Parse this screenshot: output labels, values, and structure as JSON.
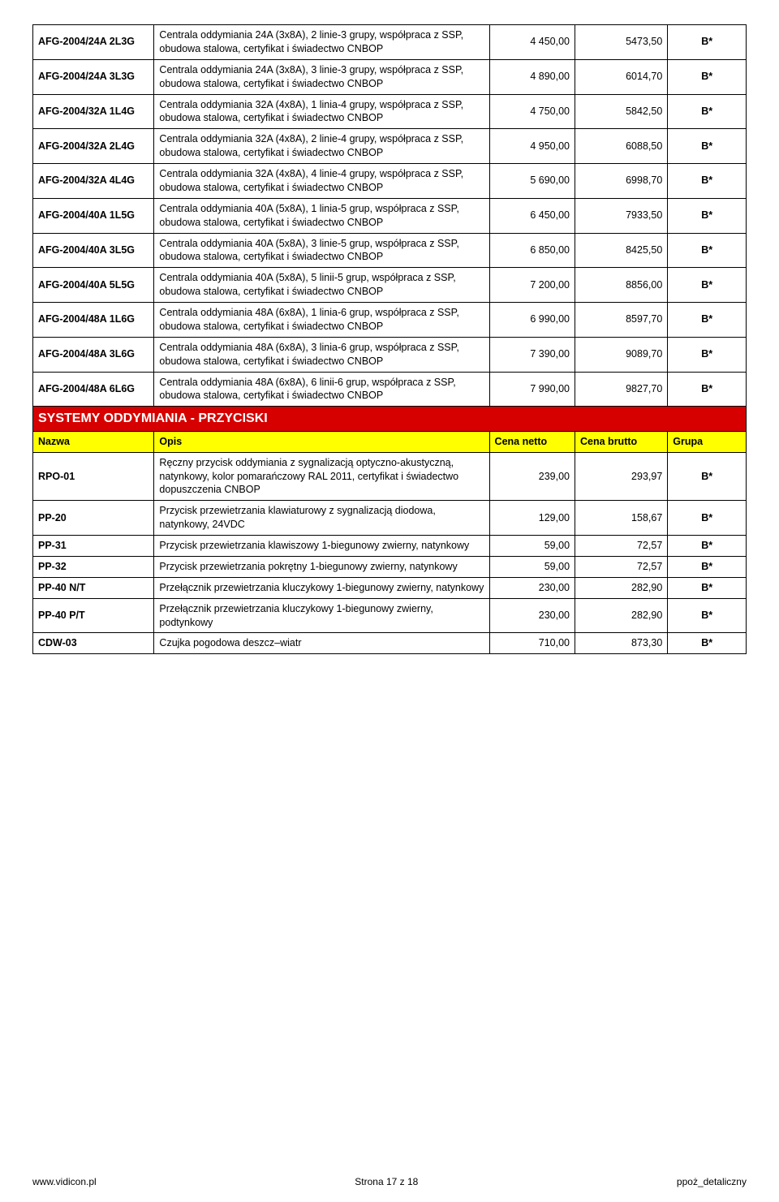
{
  "rows_top": [
    {
      "name": "AFG-2004/24A 2L3G",
      "desc": "Centrala oddymiania 24A (3x8A), 2 linie-3 grupy, współpraca z SSP, obudowa stalowa, certyfikat i świadectwo CNBOP",
      "net": "4 450,00",
      "gross": "5473,50",
      "grp": "B*"
    },
    {
      "name": "AFG-2004/24A 3L3G",
      "desc": "Centrala oddymiania 24A (3x8A), 3 linie-3 grupy, współpraca z SSP, obudowa stalowa, certyfikat i świadectwo CNBOP",
      "net": "4 890,00",
      "gross": "6014,70",
      "grp": "B*"
    },
    {
      "name": "AFG-2004/32A 1L4G",
      "desc": "Centrala oddymiania 32A (4x8A), 1 linia-4 grupy, współpraca z SSP, obudowa stalowa, certyfikat i świadectwo CNBOP",
      "net": "4 750,00",
      "gross": "5842,50",
      "grp": "B*"
    },
    {
      "name": "AFG-2004/32A 2L4G",
      "desc": "Centrala oddymiania 32A (4x8A), 2 linie-4 grupy, współpraca z SSP, obudowa stalowa, certyfikat i świadectwo CNBOP",
      "net": "4 950,00",
      "gross": "6088,50",
      "grp": "B*"
    },
    {
      "name": "AFG-2004/32A 4L4G",
      "desc": "Centrala oddymiania 32A (4x8A), 4 linie-4 grupy, współpraca z SSP, obudowa stalowa, certyfikat i świadectwo CNBOP",
      "net": "5 690,00",
      "gross": "6998,70",
      "grp": "B*"
    },
    {
      "name": "AFG-2004/40A 1L5G",
      "desc": "Centrala  oddymiania 40A (5x8A), 1 linia-5 grup, współpraca z  SSP, obudowa stalowa, certyfikat i świadectwo CNBOP",
      "net": "6 450,00",
      "gross": "7933,50",
      "grp": "B*"
    },
    {
      "name": "AFG-2004/40A 3L5G",
      "desc": "Centrala  oddymiania 40A (5x8A), 3 linie-5 grup, współpraca z  SSP, obudowa stalowa, certyfikat  i świadectwo CNBOP",
      "net": "6 850,00",
      "gross": "8425,50",
      "grp": "B*"
    },
    {
      "name": "AFG-2004/40A 5L5G",
      "desc": "Centrala  oddymiania 40A (5x8A), 5  linii-5  grup, współpraca  z  SSP,  obudowa  stalowa,  certyfikat  i świadectwo CNBOP",
      "net": "7 200,00",
      "gross": "8856,00",
      "grp": "B*"
    },
    {
      "name": "AFG-2004/48A 1L6G",
      "desc": "Centrala  oddymiania 48A (6x8A), 1 linia-6 grup, współpraca z  SSP, obudowa stalowa, certyfikat i świadectwo CNBOP",
      "net": "6 990,00",
      "gross": "8597,70",
      "grp": "B*"
    },
    {
      "name": "AFG-2004/48A 3L6G",
      "desc": "Centrala  oddymiania 48A (6x8A), 3 linia-6 grup, współpraca z  SSP, obudowa stalowa, certyfikat i świadectwo CNBOP",
      "net": "7 390,00",
      "gross": "9089,70",
      "grp": "B*"
    },
    {
      "name": "AFG-2004/48A 6L6G",
      "desc": "Centrala  oddymiania  48A  (6x8A),  6  linii-6  grup, współpraca  z  SSP,  obudowa  stalowa,  certyfikat  i świadectwo CNBOP",
      "net": "7 990,00",
      "gross": "9827,70",
      "grp": "B*"
    }
  ],
  "section_title": "SYSTEMY ODDYMIANIA  - PRZYCISKI",
  "headers": {
    "name": "Nazwa",
    "desc": "Opis",
    "net": "Cena netto",
    "gross": "Cena brutto",
    "grp": "Grupa"
  },
  "rows_bottom": [
    {
      "name": "RPO-01",
      "desc": "Ręczny przycisk oddymiania z sygnalizacją optyczno-akustyczną, natynkowy, kolor pomarańczowy RAL 2011, certyfikat i świadectwo dopuszczenia CNBOP",
      "net": "239,00",
      "gross": "293,97",
      "grp": "B*"
    },
    {
      "name": "PP-20",
      "desc": "Przycisk przewietrzania klawiaturowy z sygnalizacją diodowa, natynkowy, 24VDC",
      "net": "129,00",
      "gross": "158,67",
      "grp": "B*"
    },
    {
      "name": "PP-31",
      "desc": "Przycisk przewietrzania klawiszowy 1-biegunowy zwierny, natynkowy",
      "net": "59,00",
      "gross": "72,57",
      "grp": "B*"
    },
    {
      "name": "PP-32",
      "desc": "Przycisk przewietrzania pokrętny 1-biegunowy zwierny, natynkowy",
      "net": "59,00",
      "gross": "72,57",
      "grp": "B*"
    },
    {
      "name": "PP-40 N/T",
      "desc": "Przełącznik przewietrzania kluczykowy 1-biegunowy zwierny, natynkowy",
      "net": "230,00",
      "gross": "282,90",
      "grp": "B*"
    },
    {
      "name": "PP-40 P/T",
      "desc": "Przełącznik przewietrzania kluczykowy 1-biegunowy zwierny, podtynkowy",
      "net": "230,00",
      "gross": "282,90",
      "grp": "B*"
    },
    {
      "name": "CDW-03",
      "desc": "Czujka pogodowa deszcz–wiatr",
      "net": "710,00",
      "gross": "873,30",
      "grp": "B*"
    }
  ],
  "footer": {
    "left": "www.vidicon.pl",
    "center": "Strona 17 z 18",
    "right": "ppoż_detaliczny"
  },
  "colors": {
    "section_bg": "#d60000",
    "header_bg": "#ffff00",
    "border": "#000000"
  }
}
